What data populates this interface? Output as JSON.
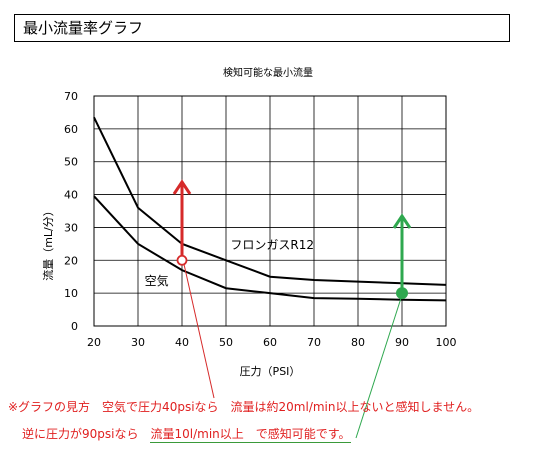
{
  "header": {
    "title": "最小流量率グラフ"
  },
  "chart_data": {
    "type": "line",
    "title": "検知可能な最小流量",
    "xlabel": "圧力（PSI）",
    "ylabel": "流量（mL/分）",
    "xlim": [
      20,
      100
    ],
    "ylim": [
      0,
      70
    ],
    "xticks": [
      "20",
      "30",
      "40",
      "50",
      "60",
      "70",
      "80",
      "90",
      "100"
    ],
    "yticks": [
      "0",
      "10",
      "20",
      "30",
      "40",
      "50",
      "60",
      "70"
    ],
    "grid": true,
    "series": [
      {
        "name": "フロンガスR12",
        "x": [
          20,
          30,
          40,
          50,
          60,
          70,
          80,
          90,
          100
        ],
        "y": [
          63.5,
          36,
          25,
          20,
          15,
          14,
          13.5,
          13,
          12.5
        ]
      },
      {
        "name": "空気",
        "x": [
          20,
          30,
          40,
          50,
          60,
          70,
          80,
          90,
          100
        ],
        "y": [
          39.5,
          25,
          17,
          11.5,
          10,
          8.5,
          8.3,
          8,
          7.8
        ]
      }
    ],
    "annotations": [
      {
        "series": "空気",
        "x": 40,
        "y": 20,
        "direction": "up",
        "color": "#d62a2a"
      },
      {
        "series": "フロンガスR12",
        "x": 90,
        "y": 10,
        "direction": "up",
        "color": "#2fa84f"
      }
    ],
    "colors": {
      "line": "#000000",
      "grid": "#000000",
      "red": "#d62a2a",
      "green": "#2fa84f"
    }
  },
  "notes": {
    "line1": "※グラフの見方　空気で圧力40psiなら　流量は約20ml/min以上ないと感知しません。",
    "line2_prefix": "逆に圧力が90psiなら　",
    "line2_highlight": "流量10l/min以上　で感知可能です。"
  }
}
